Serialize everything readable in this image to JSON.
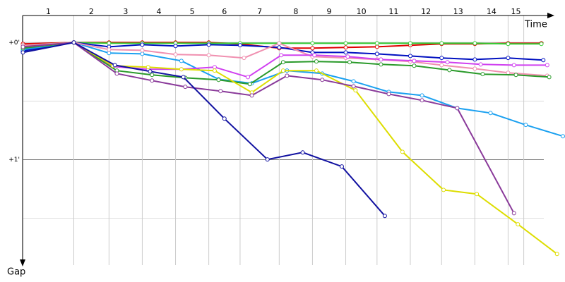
{
  "chart_data": {
    "type": "line",
    "x_label": "Time",
    "y_label": "Gap",
    "laps": [
      "1",
      "2",
      "3",
      "4",
      "5",
      "6",
      "7",
      "8",
      "9",
      "10",
      "11",
      "12",
      "13",
      "14",
      "15"
    ],
    "lap_ends": [
      0,
      26,
      44,
      61,
      78,
      95,
      111,
      131,
      148,
      165,
      181,
      198,
      214,
      231,
      248,
      256
    ],
    "xlim": [
      -11,
      276
    ],
    "ylim": [
      -16,
      114
    ],
    "yticks": [
      {
        "value": 0,
        "label": "+0'"
      },
      {
        "value": 60,
        "label": "+1'"
      }
    ],
    "minor_yticks": [
      30,
      90
    ],
    "y_inverted": true,
    "series": [
      {
        "color": "#e00000",
        "x": [
          0,
          26,
          44,
          61,
          78,
          95,
          111,
          131,
          148,
          165,
          181,
          198,
          214,
          231,
          248,
          265
        ],
        "values": [
          0.7,
          0,
          0,
          0,
          0,
          0,
          0.7,
          2.9,
          2.9,
          2.5,
          2.2,
          1.4,
          0.7,
          0.7,
          0.4,
          0.4
        ]
      },
      {
        "color": "#33cc33",
        "x": [
          0,
          26,
          44,
          61,
          78,
          95,
          111,
          131,
          148,
          165,
          181,
          198,
          214,
          231,
          248,
          265
        ],
        "values": [
          1.4,
          0,
          0.4,
          0.4,
          0.4,
          0.4,
          0.4,
          0.4,
          0.4,
          0.4,
          0.4,
          0.4,
          0.4,
          0.4,
          0.7,
          0.7
        ]
      },
      {
        "color": "#0010c0",
        "x": [
          0,
          26,
          44,
          61,
          78,
          95,
          111,
          131,
          148,
          165,
          181,
          198,
          214,
          231,
          248,
          266
        ],
        "values": [
          4.3,
          0,
          2.2,
          1.1,
          1.8,
          1.1,
          1.4,
          2.5,
          5.1,
          5.1,
          5.8,
          6.9,
          7.9,
          8.7,
          7.9,
          9
        ]
      },
      {
        "color": "#1aa0f0",
        "x": [
          0,
          26,
          44,
          61,
          81,
          100,
          117,
          135,
          153,
          169,
          187,
          204,
          222,
          239,
          257,
          276
        ],
        "values": [
          3.6,
          0,
          5.4,
          5.8,
          9.4,
          18.8,
          20.9,
          14.4,
          15.9,
          19.9,
          25.3,
          27.1,
          33.6,
          36.1,
          42.2,
          48
        ]
      },
      {
        "color": "#f090b0",
        "x": [
          0,
          26,
          44,
          61,
          78,
          95,
          113,
          131,
          148,
          165,
          181,
          198,
          214,
          231,
          248,
          268
        ],
        "values": [
          1.4,
          0,
          3.6,
          4,
          6.1,
          6.5,
          7.9,
          0.4,
          7.2,
          7.9,
          8.7,
          9.7,
          11.6,
          13.4,
          15.5,
          17
        ]
      },
      {
        "color": "#d040f0",
        "x": [
          0,
          26,
          46,
          64,
          81,
          98,
          115,
          132,
          149,
          166,
          183,
          200,
          217,
          234,
          251,
          268
        ],
        "values": [
          2.2,
          0,
          12.3,
          13.7,
          13.7,
          12.6,
          17.7,
          6.5,
          6.5,
          7.2,
          8.7,
          9.4,
          10.1,
          11.2,
          11.6,
          11.6
        ]
      },
      {
        "color": "#2a9a2a",
        "x": [
          0,
          26,
          48,
          66,
          83,
          100,
          116,
          133,
          150,
          167,
          183,
          200,
          218,
          235,
          252,
          269
        ],
        "values": [
          2.9,
          0,
          14.4,
          16.6,
          18.1,
          19.1,
          21.3,
          10.1,
          9.7,
          10.1,
          11.2,
          11.9,
          14.1,
          16.2,
          16.6,
          17.7
        ]
      },
      {
        "color": "#dddd00",
        "x": [
          0,
          26,
          46,
          64,
          81,
          98,
          117,
          133,
          150,
          170,
          194,
          215,
          232,
          253,
          273
        ],
        "values": [
          2.2,
          0,
          11.9,
          12.6,
          13.7,
          14.4,
          25.6,
          14.4,
          14.4,
          24.5,
          56,
          75.5,
          77.6,
          93.1,
          108.3
        ]
      },
      {
        "color": "#8a3a9a",
        "x": [
          0,
          26,
          48,
          66,
          83,
          101,
          117,
          135,
          153,
          169,
          187,
          204,
          222,
          251
        ],
        "values": [
          2.2,
          0,
          15.9,
          19.5,
          22.7,
          24.9,
          27.1,
          17,
          19.1,
          22.4,
          26.4,
          29.6,
          33.6,
          87.4
        ]
      },
      {
        "color": "#1010a0",
        "x": [
          0,
          26,
          47,
          65,
          82,
          103,
          125,
          143,
          163,
          185
        ],
        "values": [
          5.1,
          0,
          11.6,
          14.8,
          17.7,
          39,
          59.9,
          56.3,
          63.5,
          88.8
        ]
      }
    ]
  }
}
